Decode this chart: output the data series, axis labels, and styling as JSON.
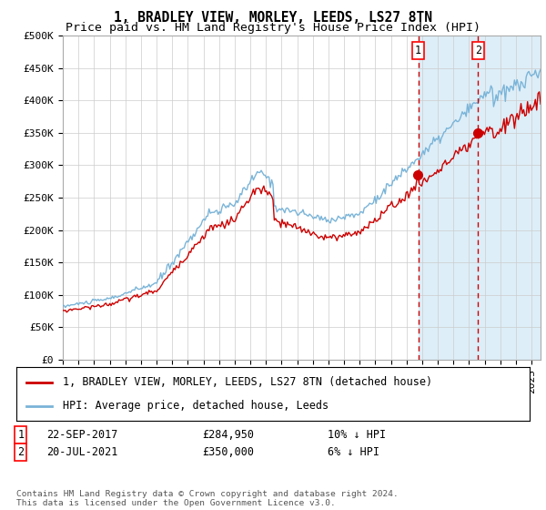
{
  "title": "1, BRADLEY VIEW, MORLEY, LEEDS, LS27 8TN",
  "subtitle": "Price paid vs. HM Land Registry's House Price Index (HPI)",
  "ylim": [
    0,
    500000
  ],
  "yticks": [
    0,
    50000,
    100000,
    150000,
    200000,
    250000,
    300000,
    350000,
    400000,
    450000,
    500000
  ],
  "ytick_labels": [
    "£0",
    "£50K",
    "£100K",
    "£150K",
    "£200K",
    "£250K",
    "£300K",
    "£350K",
    "£400K",
    "£450K",
    "£500K"
  ],
  "hpi_color": "#7ab4d8",
  "price_color": "#cc0000",
  "vline_color": "#cc0000",
  "shade_color": "#ddeef8",
  "grid_color": "#cccccc",
  "marker1_price": 284950,
  "marker2_price": 350000,
  "t1": 2017.75,
  "t2": 2021.583,
  "legend_label_price": "1, BRADLEY VIEW, MORLEY, LEEDS, LS27 8TN (detached house)",
  "legend_label_hpi": "HPI: Average price, detached house, Leeds",
  "sale1_date": "22-SEP-2017",
  "sale1_price": "£284,950",
  "sale1_hpi": "10% ↓ HPI",
  "sale2_date": "20-JUL-2021",
  "sale2_price": "£350,000",
  "sale2_hpi": "6% ↓ HPI",
  "copyright": "Contains HM Land Registry data © Crown copyright and database right 2024.\nThis data is licensed under the Open Government Licence v3.0.",
  "title_fontsize": 10.5,
  "subtitle_fontsize": 9.5,
  "tick_fontsize": 8,
  "legend_fontsize": 8.5,
  "info_fontsize": 8.5
}
